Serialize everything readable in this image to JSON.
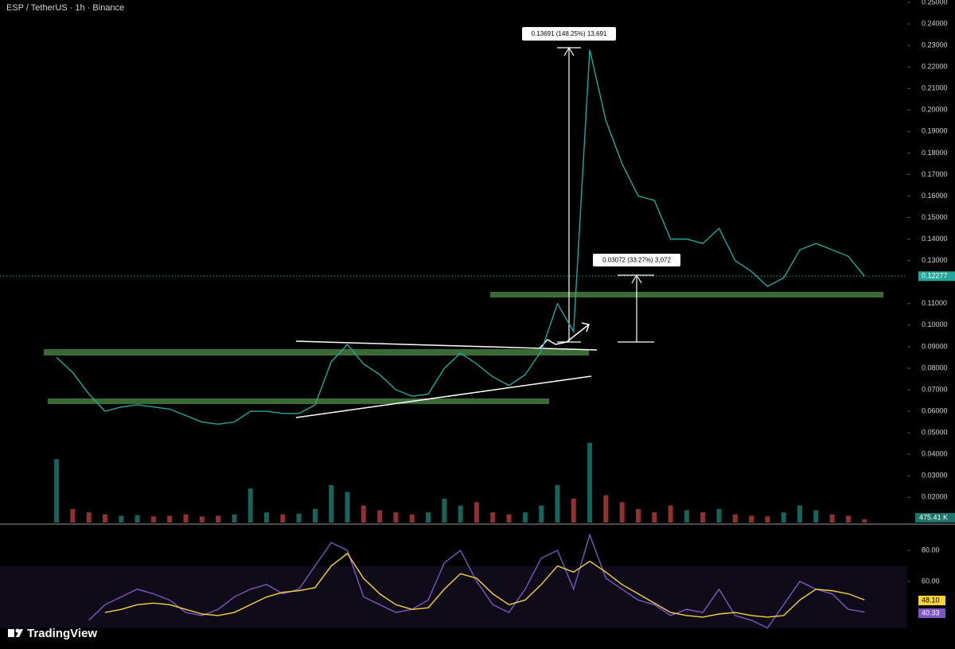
{
  "title": "ESP / TetherUS · 1h · Binance",
  "brand": "TradingView",
  "chart_data": [
    {
      "type": "line",
      "annotations": [
        "0.13691 (148.25%) 13,691",
        "0.03072 (33.27%) 3,072"
      ],
      "x": [
        0,
        2,
        4,
        6,
        8,
        10,
        12,
        14,
        16,
        18,
        20,
        22,
        24,
        26,
        28,
        30,
        32,
        34,
        36,
        38,
        40,
        42,
        44,
        46,
        48,
        50,
        52,
        54,
        56,
        58,
        60,
        62,
        64,
        66,
        68,
        70,
        72,
        74,
        76,
        78,
        80,
        82,
        84,
        86,
        88,
        90,
        92,
        94,
        96,
        98,
        100
      ],
      "xlim": [
        -7,
        105.3
      ],
      "series": [
        {
          "color": "#26a69a",
          "values": [
            0.085,
            0.078,
            0.068,
            0.06,
            0.062,
            0.063,
            0.062,
            0.061,
            0.058,
            0.055,
            0.054,
            0.055,
            0.06,
            0.06,
            0.059,
            0.059,
            0.063,
            0.083,
            0.091,
            0.082,
            0.077,
            0.07,
            0.067,
            0.068,
            0.08,
            0.087,
            0.082,
            0.076,
            0.072,
            0.077,
            0.088,
            0.11,
            0.097,
            0.228,
            0.195,
            0.175,
            0.16,
            0.158,
            0.14,
            0.14,
            0.138,
            0.145,
            0.13,
            0.125,
            0.118,
            0.122,
            0.135,
            0.138,
            0.135,
            0.132,
            0.12277
          ]
        }
      ],
      "ylim": [
        0.0083,
        0.2511
      ],
      "yticks": [
        {
          "value": 0.02,
          "label": "0.02000"
        },
        {
          "value": 0.03,
          "label": "0.03000"
        },
        {
          "value": 0.04,
          "label": "0.04000"
        },
        {
          "value": 0.05,
          "label": "0.05000"
        },
        {
          "value": 0.06,
          "label": "0.06000"
        },
        {
          "value": 0.07,
          "label": "0.07000"
        },
        {
          "value": 0.08,
          "label": "0.08000"
        },
        {
          "value": 0.09,
          "label": "0.09000"
        },
        {
          "value": 0.1,
          "label": "0.10000"
        },
        {
          "value": 0.11,
          "label": "0.11000"
        },
        {
          "value": 0.13,
          "label": "0.13000"
        },
        {
          "value": 0.14,
          "label": "0.14000"
        },
        {
          "value": 0.15,
          "label": "0.15000"
        },
        {
          "value": 0.16,
          "label": "0.16000"
        },
        {
          "value": 0.17,
          "label": "0.17000"
        },
        {
          "value": 0.18,
          "label": "0.18000"
        },
        {
          "value": 0.19,
          "label": "0.19000"
        },
        {
          "value": 0.2,
          "label": "0.20000"
        },
        {
          "value": 0.21,
          "label": "0.21000"
        },
        {
          "value": 0.22,
          "label": "0.22000"
        },
        {
          "value": 0.23,
          "label": "0.23000"
        },
        {
          "value": 0.24,
          "label": "0.24000"
        },
        {
          "value": 0.25,
          "label": "0.25000"
        }
      ],
      "grid": false
    },
    {
      "type": "bar",
      "x": [
        0,
        2,
        4,
        6,
        8,
        10,
        12,
        14,
        16,
        18,
        20,
        22,
        24,
        26,
        28,
        30,
        32,
        34,
        36,
        38,
        40,
        42,
        44,
        46,
        48,
        50,
        52,
        54,
        56,
        58,
        60,
        62,
        64,
        66,
        68,
        70,
        72,
        74,
        76,
        78,
        80,
        82,
        84,
        86,
        88,
        90,
        92,
        94,
        96,
        98,
        100
      ],
      "xlim": [
        -7,
        105.3
      ],
      "values": [
        9300,
        2000,
        1500,
        1200,
        1000,
        1100,
        900,
        1000,
        1200,
        900,
        1000,
        1200,
        5000,
        1500,
        1200,
        1300,
        2000,
        5500,
        4500,
        2500,
        1800,
        1500,
        1200,
        1500,
        3500,
        2500,
        3000,
        1500,
        1200,
        1500,
        2500,
        5500,
        3500,
        11700,
        4000,
        3000,
        2000,
        1500,
        2500,
        1800,
        1500,
        2000,
        1200,
        1000,
        900,
        1500,
        2500,
        1800,
        1200,
        1000,
        475.41
      ],
      "last_label": "475.41 K",
      "ylim": [
        0,
        16000
      ],
      "up_color": "#26a69a",
      "down_color": "#ef5350"
    },
    {
      "type": "line",
      "x": [
        0,
        2,
        4,
        6,
        8,
        10,
        12,
        14,
        16,
        18,
        20,
        22,
        24,
        26,
        28,
        30,
        32,
        34,
        36,
        38,
        40,
        42,
        44,
        46,
        48,
        50,
        52,
        54,
        56,
        58,
        60,
        62,
        64,
        66,
        68,
        70,
        72,
        74,
        76,
        78,
        80,
        82,
        84,
        86,
        88,
        90,
        92,
        94,
        96,
        98,
        100
      ],
      "xlim": [
        -7,
        105.3
      ],
      "series": [
        {
          "color": "#7e57c2",
          "values": [
            null,
            null,
            35,
            45,
            50,
            55,
            52,
            48,
            40,
            38,
            42,
            50,
            55,
            58,
            52,
            55,
            70,
            85,
            80,
            50,
            45,
            40,
            42,
            48,
            72,
            80,
            60,
            45,
            40,
            55,
            75,
            80,
            55,
            90,
            62,
            55,
            48,
            45,
            38,
            42,
            40,
            55,
            38,
            35,
            30,
            45,
            60,
            55,
            52,
            42,
            40.33
          ]
        },
        {
          "color": "#f5d33b",
          "values": [
            null,
            null,
            null,
            40,
            42,
            45,
            46,
            45,
            42,
            39,
            38,
            40,
            45,
            50,
            53,
            54,
            56,
            70,
            78,
            62,
            52,
            45,
            42,
            43,
            55,
            65,
            62,
            52,
            45,
            48,
            58,
            70,
            66,
            73,
            66,
            58,
            52,
            46,
            40,
            38,
            37,
            39,
            40,
            38,
            37,
            38,
            48,
            55,
            54,
            52,
            48.1
          ],
          "last_label": "48.10"
        }
      ],
      "band": [
        30,
        70
      ],
      "ylim": [
        19.0,
        95.4
      ],
      "yticks": [
        {
          "value": 60,
          "label": "60.00"
        },
        {
          "value": 80,
          "label": "80.00"
        }
      ]
    }
  ]
}
